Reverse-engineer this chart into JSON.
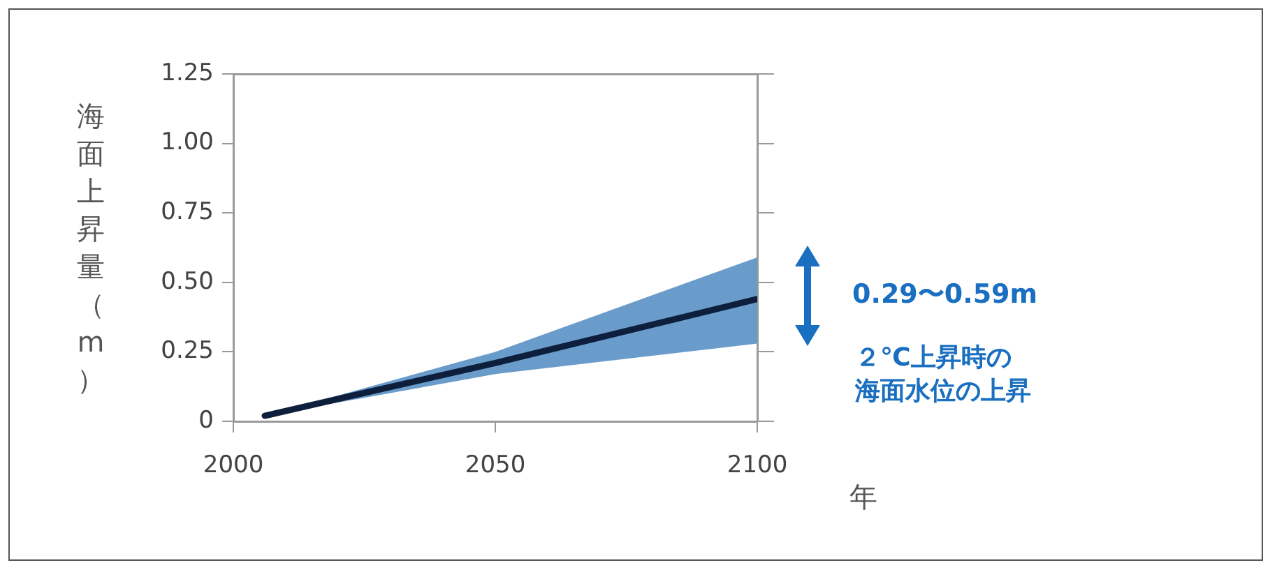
{
  "chart_data": {
    "type": "line",
    "ylabel": "海面上昇量（m）",
    "xlabel": "年",
    "x": [
      2006,
      2050,
      2100
    ],
    "series": [
      {
        "color": "#0d1f3c",
        "values": [
          0.02,
          0.21,
          0.44
        ],
        "lower": [
          0.02,
          0.17,
          0.28
        ],
        "upper": [
          0.02,
          0.25,
          0.59
        ]
      }
    ],
    "xlim": [
      2000,
      2100
    ],
    "xticks": [
      2000,
      2050,
      2100
    ],
    "ylim": [
      0,
      1.25
    ],
    "yticks": [
      0,
      0.25,
      {
        "value": 0.5,
        "label": "0.50"
      },
      0.75,
      {
        "value": 1,
        "label": "1.00"
      },
      1.25
    ],
    "annotations": [
      "0.29〜0.59m",
      "２℃上昇時の",
      "海面水位の上昇"
    ],
    "grid": false,
    "legend": false,
    "marker": "none",
    "line_style": "solid"
  }
}
